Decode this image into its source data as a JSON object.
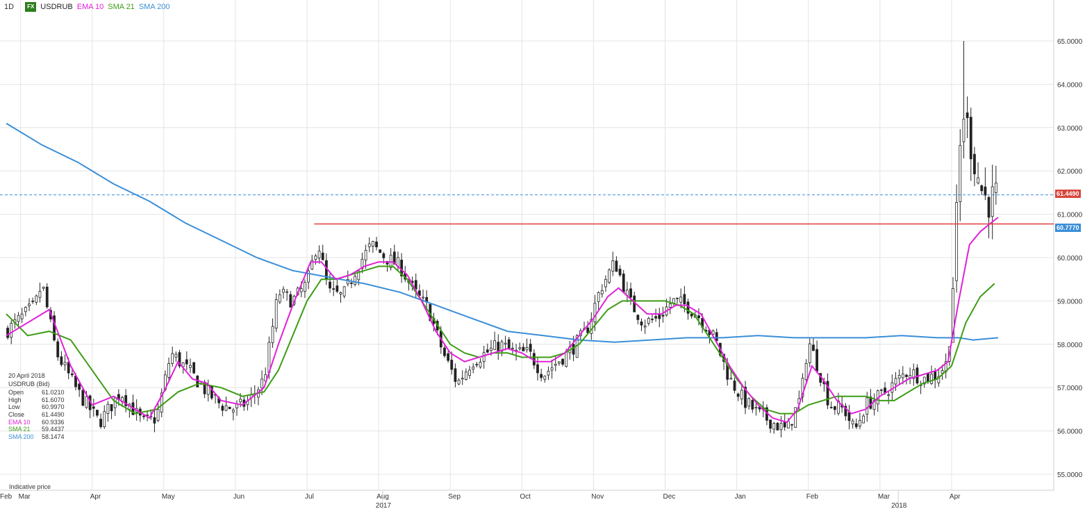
{
  "header": {
    "interval": "1D",
    "badge": "FX",
    "symbol": "USDRUB",
    "ema_label": "EMA 10",
    "sma21_label": "SMA 21",
    "sma200_label": "SMA 200"
  },
  "info_box": {
    "date": "20 April 2018",
    "instrument": "USDRUB (Bid)",
    "rows": [
      {
        "key": "Open",
        "value": "61.0210"
      },
      {
        "key": "High",
        "value": "61.6070"
      },
      {
        "key": "Low",
        "value": "60.9970"
      },
      {
        "key": "Close",
        "value": "61.4490"
      },
      {
        "key": "EMA 10",
        "value": "60.9336"
      },
      {
        "key": "SMA 21",
        "value": "59.4437"
      },
      {
        "key": "SMA 200",
        "value": "58.1474"
      }
    ]
  },
  "footer_note": "Indicative price",
  "colors": {
    "ema10": "#e020d8",
    "sma21": "#3c9c14",
    "sma200": "#3a8ed8",
    "resistance": "#e03c3c",
    "price_tag_red": "#d8453c",
    "price_tag_blue": "#3a8ed8",
    "candle": "#222222",
    "grid": "#e4e4e4"
  },
  "chart_data": {
    "type": "candlestick",
    "symbol": "USDRUB",
    "interval": "1D",
    "ylim": [
      55.0,
      65.0
    ],
    "y_ticks": [
      "55.0000",
      "56.0000",
      "57.0000",
      "58.0000",
      "59.0000",
      "60.0000",
      "61.0000",
      "62.0000",
      "63.0000",
      "64.0000",
      "65.0000"
    ],
    "x_months": [
      {
        "label": "Feb",
        "m": 0
      },
      {
        "label": "Mar",
        "m": 0.2
      },
      {
        "label": "Apr",
        "m": 1.2
      },
      {
        "label": "May",
        "m": 2.2
      },
      {
        "label": "Jun",
        "m": 3.2
      },
      {
        "label": "Jul",
        "m": 4.2
      },
      {
        "label": "Aug",
        "m": 5.2
      },
      {
        "label": "Sep",
        "m": 6.2
      },
      {
        "label": "Oct",
        "m": 7.2
      },
      {
        "label": "Nov",
        "m": 8.2
      },
      {
        "label": "Dec",
        "m": 9.2
      },
      {
        "label": "Jan",
        "m": 10.2
      },
      {
        "label": "Feb",
        "m": 11.2
      },
      {
        "label": "Mar",
        "m": 12.2
      },
      {
        "label": "Apr",
        "m": 13.2
      }
    ],
    "x_years": [
      {
        "label": "2017",
        "m": 5.1
      },
      {
        "label": "2018",
        "m": 12.3
      }
    ],
    "price_anchors": [
      [
        0,
        58.3
      ],
      [
        0.4,
        58.9
      ],
      [
        0.5,
        59.4
      ],
      [
        0.7,
        57.8
      ],
      [
        1.0,
        56.9
      ],
      [
        1.3,
        56.2
      ],
      [
        1.6,
        56.9
      ],
      [
        1.9,
        56.2
      ],
      [
        2.1,
        56.3
      ],
      [
        2.3,
        57.8
      ],
      [
        2.6,
        57.3
      ],
      [
        2.8,
        56.9
      ],
      [
        3.0,
        56.6
      ],
      [
        3.2,
        56.5
      ],
      [
        3.4,
        56.7
      ],
      [
        3.6,
        57.2
      ],
      [
        3.8,
        59.2
      ],
      [
        4.0,
        59.0
      ],
      [
        4.2,
        59.4
      ],
      [
        4.35,
        60.4
      ],
      [
        4.5,
        59.2
      ],
      [
        4.7,
        59.1
      ],
      [
        4.9,
        59.8
      ],
      [
        5.1,
        60.3
      ],
      [
        5.3,
        60.0
      ],
      [
        5.5,
        59.8
      ],
      [
        5.7,
        59.2
      ],
      [
        5.9,
        58.8
      ],
      [
        6.1,
        57.8
      ],
      [
        6.3,
        57.1
      ],
      [
        6.5,
        57.6
      ],
      [
        6.7,
        57.8
      ],
      [
        6.9,
        58.0
      ],
      [
        7.1,
        57.8
      ],
      [
        7.3,
        57.8
      ],
      [
        7.5,
        57.3
      ],
      [
        7.7,
        57.6
      ],
      [
        7.9,
        57.9
      ],
      [
        8.1,
        58.3
      ],
      [
        8.3,
        59.3
      ],
      [
        8.5,
        59.9
      ],
      [
        8.7,
        59.0
      ],
      [
        8.9,
        58.5
      ],
      [
        9.1,
        58.6
      ],
      [
        9.3,
        59.0
      ],
      [
        9.5,
        58.9
      ],
      [
        9.7,
        58.6
      ],
      [
        9.9,
        58.1
      ],
      [
        10.1,
        57.2
      ],
      [
        10.3,
        56.7
      ],
      [
        10.5,
        56.4
      ],
      [
        10.7,
        56.2
      ],
      [
        10.9,
        56.0
      ],
      [
        11.1,
        56.8
      ],
      [
        11.2,
        58.1
      ],
      [
        11.35,
        57.4
      ],
      [
        11.5,
        56.6
      ],
      [
        11.7,
        56.5
      ],
      [
        11.85,
        56.0
      ],
      [
        12.0,
        56.6
      ],
      [
        12.2,
        56.8
      ],
      [
        12.4,
        57.1
      ],
      [
        12.6,
        57.4
      ],
      [
        12.8,
        57.2
      ],
      [
        13.0,
        57.3
      ],
      [
        13.15,
        57.6
      ],
      [
        13.25,
        60.2
      ],
      [
        13.35,
        63.5
      ],
      [
        13.45,
        62.8
      ],
      [
        13.55,
        62.0
      ],
      [
        13.65,
        61.4
      ],
      [
        13.75,
        61.3
      ],
      [
        13.85,
        61.45
      ]
    ],
    "ema10": [
      [
        0,
        58.2
      ],
      [
        0.6,
        58.8
      ],
      [
        0.9,
        57.5
      ],
      [
        1.2,
        56.6
      ],
      [
        1.5,
        56.8
      ],
      [
        1.8,
        56.5
      ],
      [
        2.0,
        56.3
      ],
      [
        2.2,
        56.9
      ],
      [
        2.4,
        57.6
      ],
      [
        2.6,
        57.2
      ],
      [
        2.8,
        57.1
      ],
      [
        3.0,
        56.7
      ],
      [
        3.3,
        56.6
      ],
      [
        3.6,
        57.0
      ],
      [
        3.8,
        58.0
      ],
      [
        4.0,
        58.9
      ],
      [
        4.25,
        59.9
      ],
      [
        4.4,
        59.9
      ],
      [
        4.6,
        59.5
      ],
      [
        4.8,
        59.6
      ],
      [
        5.0,
        59.8
      ],
      [
        5.2,
        59.9
      ],
      [
        5.4,
        59.9
      ],
      [
        5.6,
        59.6
      ],
      [
        5.8,
        59.0
      ],
      [
        6.0,
        58.3
      ],
      [
        6.2,
        57.8
      ],
      [
        6.4,
        57.6
      ],
      [
        6.6,
        57.7
      ],
      [
        6.8,
        57.8
      ],
      [
        7.0,
        57.9
      ],
      [
        7.2,
        57.8
      ],
      [
        7.4,
        57.6
      ],
      [
        7.6,
        57.6
      ],
      [
        7.8,
        57.8
      ],
      [
        8.0,
        58.2
      ],
      [
        8.2,
        58.6
      ],
      [
        8.4,
        59.1
      ],
      [
        8.55,
        59.3
      ],
      [
        8.75,
        59.0
      ],
      [
        8.95,
        58.7
      ],
      [
        9.15,
        58.7
      ],
      [
        9.35,
        58.9
      ],
      [
        9.5,
        58.9
      ],
      [
        9.7,
        58.7
      ],
      [
        9.9,
        58.1
      ],
      [
        10.1,
        57.5
      ],
      [
        10.3,
        57.0
      ],
      [
        10.5,
        56.6
      ],
      [
        10.7,
        56.3
      ],
      [
        10.9,
        56.2
      ],
      [
        11.05,
        56.5
      ],
      [
        11.25,
        57.5
      ],
      [
        11.4,
        57.2
      ],
      [
        11.6,
        56.7
      ],
      [
        11.8,
        56.4
      ],
      [
        12.0,
        56.5
      ],
      [
        12.2,
        56.8
      ],
      [
        12.4,
        57.0
      ],
      [
        12.6,
        57.2
      ],
      [
        12.8,
        57.3
      ],
      [
        13.0,
        57.4
      ],
      [
        13.15,
        57.6
      ],
      [
        13.3,
        59.0
      ],
      [
        13.45,
        60.3
      ],
      [
        13.6,
        60.6
      ],
      [
        13.75,
        60.8
      ],
      [
        13.85,
        60.93
      ]
    ],
    "sma21": [
      [
        0,
        58.7
      ],
      [
        0.3,
        58.2
      ],
      [
        0.6,
        58.3
      ],
      [
        0.9,
        58.1
      ],
      [
        1.2,
        57.4
      ],
      [
        1.5,
        56.7
      ],
      [
        1.8,
        56.4
      ],
      [
        2.1,
        56.5
      ],
      [
        2.4,
        56.9
      ],
      [
        2.7,
        57.1
      ],
      [
        3.0,
        57.0
      ],
      [
        3.3,
        56.8
      ],
      [
        3.6,
        56.9
      ],
      [
        3.8,
        57.4
      ],
      [
        4.0,
        58.2
      ],
      [
        4.2,
        59.0
      ],
      [
        4.4,
        59.5
      ],
      [
        4.6,
        59.5
      ],
      [
        4.8,
        59.6
      ],
      [
        5.0,
        59.7
      ],
      [
        5.2,
        59.8
      ],
      [
        5.4,
        59.8
      ],
      [
        5.6,
        59.5
      ],
      [
        5.8,
        59.0
      ],
      [
        6.0,
        58.5
      ],
      [
        6.2,
        58.0
      ],
      [
        6.4,
        57.8
      ],
      [
        6.6,
        57.7
      ],
      [
        6.8,
        57.8
      ],
      [
        7.0,
        57.8
      ],
      [
        7.2,
        57.7
      ],
      [
        7.4,
        57.7
      ],
      [
        7.6,
        57.7
      ],
      [
        7.8,
        57.8
      ],
      [
        8.0,
        58.0
      ],
      [
        8.2,
        58.4
      ],
      [
        8.4,
        58.8
      ],
      [
        8.6,
        59.0
      ],
      [
        8.8,
        59.0
      ],
      [
        9.0,
        59.0
      ],
      [
        9.2,
        59.0
      ],
      [
        9.4,
        58.9
      ],
      [
        9.6,
        58.7
      ],
      [
        9.8,
        58.2
      ],
      [
        10.0,
        57.7
      ],
      [
        10.2,
        57.2
      ],
      [
        10.4,
        56.8
      ],
      [
        10.6,
        56.5
      ],
      [
        10.8,
        56.4
      ],
      [
        11.0,
        56.4
      ],
      [
        11.2,
        56.6
      ],
      [
        11.4,
        56.7
      ],
      [
        11.6,
        56.8
      ],
      [
        11.8,
        56.8
      ],
      [
        12.0,
        56.8
      ],
      [
        12.2,
        56.7
      ],
      [
        12.4,
        56.7
      ],
      [
        12.6,
        56.9
      ],
      [
        12.8,
        57.1
      ],
      [
        13.0,
        57.2
      ],
      [
        13.2,
        57.5
      ],
      [
        13.4,
        58.5
      ],
      [
        13.6,
        59.1
      ],
      [
        13.8,
        59.4
      ]
    ],
    "sma200": [
      [
        0,
        63.1
      ],
      [
        0.5,
        62.6
      ],
      [
        1.0,
        62.2
      ],
      [
        1.5,
        61.7
      ],
      [
        2.0,
        61.3
      ],
      [
        2.5,
        60.8
      ],
      [
        3.0,
        60.4
      ],
      [
        3.5,
        60.0
      ],
      [
        4.0,
        59.7
      ],
      [
        4.5,
        59.55
      ],
      [
        5.0,
        59.4
      ],
      [
        5.5,
        59.2
      ],
      [
        6.0,
        58.9
      ],
      [
        6.5,
        58.6
      ],
      [
        7.0,
        58.3
      ],
      [
        7.5,
        58.2
      ],
      [
        8.0,
        58.1
      ],
      [
        8.5,
        58.05
      ],
      [
        9.0,
        58.1
      ],
      [
        9.5,
        58.15
      ],
      [
        10.0,
        58.15
      ],
      [
        10.5,
        58.2
      ],
      [
        11.0,
        58.15
      ],
      [
        11.5,
        58.15
      ],
      [
        12.0,
        58.15
      ],
      [
        12.5,
        58.2
      ],
      [
        13.0,
        58.15
      ],
      [
        13.3,
        58.15
      ],
      [
        13.5,
        58.1
      ],
      [
        13.85,
        58.15
      ]
    ],
    "resistance_level": 60.777,
    "resistance_start_m": 4.3,
    "bid_line": 61.449,
    "price_tags": [
      "61.4490",
      "60.7770"
    ],
    "spike_high": 65.0,
    "spike_m": 13.38
  }
}
